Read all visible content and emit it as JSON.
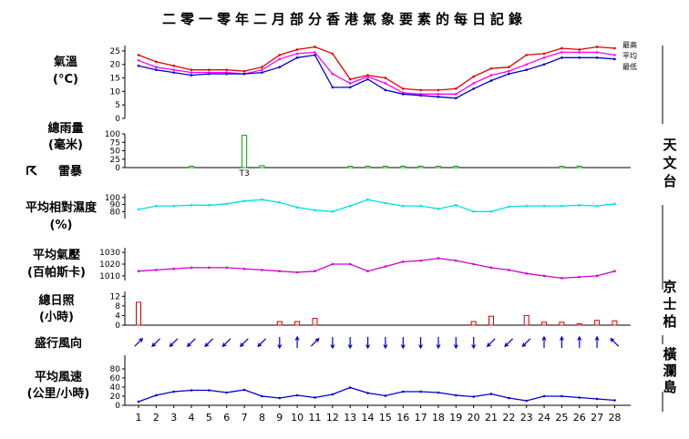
{
  "title": "二零一零年二月部分香港氣象要素的每日記錄",
  "labels": {
    "temp": [
      "氣溫",
      "(°C)"
    ],
    "rain": [
      "總雨量",
      "(毫米)"
    ],
    "thunder": "雷暴",
    "rh": [
      "平均相對濕度",
      "(%)"
    ],
    "pressure": [
      "平均氣壓",
      "(百帕斯卡)"
    ],
    "sunshine": [
      "總日照",
      "(小時)"
    ],
    "wind_dir": "盛行風向",
    "wind_speed": [
      "平均風速",
      "(公里/小時)"
    ]
  },
  "stations": {
    "observatory": "天文台",
    "kings_park": "京士柏",
    "waglan": "橫瀾島"
  },
  "legend": {
    "max": "最高",
    "mean": "平均",
    "min": "最低"
  },
  "colors": {
    "max": "#e00000",
    "mean": "#ff00ff",
    "min": "#0000cc",
    "rain": "#00b000",
    "rh": "#00e0e0",
    "pressure": "#cc00cc",
    "sunshine": "#cc0000",
    "wind": "#0000cc"
  },
  "chart_data": {
    "days": [
      "1",
      "2",
      "3",
      "4",
      "5",
      "6",
      "7",
      "8",
      "9",
      "10",
      "11",
      "12",
      "13",
      "14",
      "15",
      "16",
      "17",
      "18",
      "19",
      "20",
      "21",
      "22",
      "23",
      "24",
      "25",
      "26",
      "27",
      "28"
    ],
    "temperature": {
      "type": "line",
      "ylim": [
        0,
        27
      ],
      "ticks": [
        "0",
        "5",
        "10",
        "15",
        "20",
        "25"
      ],
      "max": [
        23.5,
        21,
        19.5,
        18,
        18,
        18,
        17.5,
        19,
        23.5,
        25.5,
        26.5,
        24,
        14.5,
        16,
        15,
        11,
        10.5,
        10.5,
        11,
        15.5,
        18.5,
        19,
        23.5,
        24,
        26,
        25.5,
        26.5,
        26
      ],
      "mean": [
        21.5,
        19,
        18,
        17,
        17,
        17,
        16.5,
        18,
        22,
        24,
        24.5,
        16.5,
        13,
        15.5,
        13,
        9.5,
        9,
        9,
        9,
        13,
        16,
        17.5,
        20,
        22.5,
        24.5,
        24.5,
        24.5,
        23.5
      ],
      "min": [
        19.5,
        18,
        17,
        16,
        16.5,
        16.5,
        16.5,
        17,
        19,
        22.5,
        23.5,
        11.5,
        11.5,
        14.5,
        10.5,
        9,
        8.5,
        8,
        7.5,
        11,
        14,
        16.5,
        18,
        20,
        22.5,
        22.5,
        22.5,
        22
      ]
    },
    "rainfall": {
      "type": "bar",
      "ylim": [
        0,
        100
      ],
      "ticks": [
        "0",
        "25",
        "50",
        "75",
        "100"
      ],
      "values": [
        0,
        0,
        0,
        1,
        0,
        0,
        96,
        6,
        0,
        0,
        0,
        0,
        1,
        2,
        1,
        1,
        1,
        1,
        1,
        0,
        0,
        0,
        0,
        0,
        1,
        1,
        0,
        0
      ],
      "thunder_days": [
        7
      ],
      "thunder_label": "T3"
    },
    "humidity": {
      "type": "line",
      "ylim": [
        70,
        105
      ],
      "ticks": [
        "80",
        "90",
        "100"
      ],
      "values": [
        83,
        88,
        88,
        89,
        89,
        91,
        95,
        97,
        93,
        86,
        82,
        80,
        88,
        97,
        92,
        88,
        88,
        84,
        89,
        80,
        80,
        87,
        88,
        88,
        88,
        89,
        88,
        91
      ]
    },
    "pressure": {
      "type": "line",
      "ylim": [
        1006,
        1034
      ],
      "ticks": [
        "1010",
        "1020",
        "1030"
      ],
      "values": [
        1014,
        1015,
        1016,
        1017,
        1017,
        1017,
        1016,
        1015,
        1014,
        1013,
        1014,
        1020,
        1020,
        1014,
        1018,
        1022,
        1023,
        1025,
        1023,
        1020,
        1017,
        1015,
        1012,
        1010,
        1008,
        1009,
        1010,
        1014
      ]
    },
    "sunshine": {
      "type": "bar",
      "ylim": [
        0,
        14
      ],
      "ticks": [
        "0",
        "4",
        "8",
        "12"
      ],
      "values": [
        9.5,
        0,
        0,
        0,
        0,
        0,
        0,
        0,
        1.5,
        1.5,
        2.8,
        0,
        0,
        0,
        0,
        0,
        0,
        0,
        0,
        1.5,
        3.7,
        0,
        4.0,
        1.2,
        1.2,
        0.4,
        2.0,
        1.8
      ]
    },
    "wind_direction": {
      "type": "arrows",
      "values": [
        "NE",
        "SW",
        "SW",
        "SW",
        "SW",
        "SW",
        "SW",
        "SW",
        "S",
        "N",
        "NE",
        "S",
        "S",
        "S",
        "S",
        "S",
        "S",
        "S",
        "S",
        "S",
        "SW",
        "SW",
        "SW",
        "N",
        "N",
        "N",
        "N",
        "NW"
      ]
    },
    "wind_speed": {
      "type": "line",
      "ylim": [
        0,
        110
      ],
      "ticks": [
        "0",
        "20",
        "40",
        "60",
        "80"
      ],
      "values": [
        8,
        22,
        30,
        33,
        33,
        28,
        34,
        20,
        16,
        22,
        17,
        24,
        39,
        27,
        21,
        30,
        30,
        28,
        22,
        19,
        25,
        16,
        10,
        20,
        20,
        17,
        14,
        11
      ]
    }
  }
}
